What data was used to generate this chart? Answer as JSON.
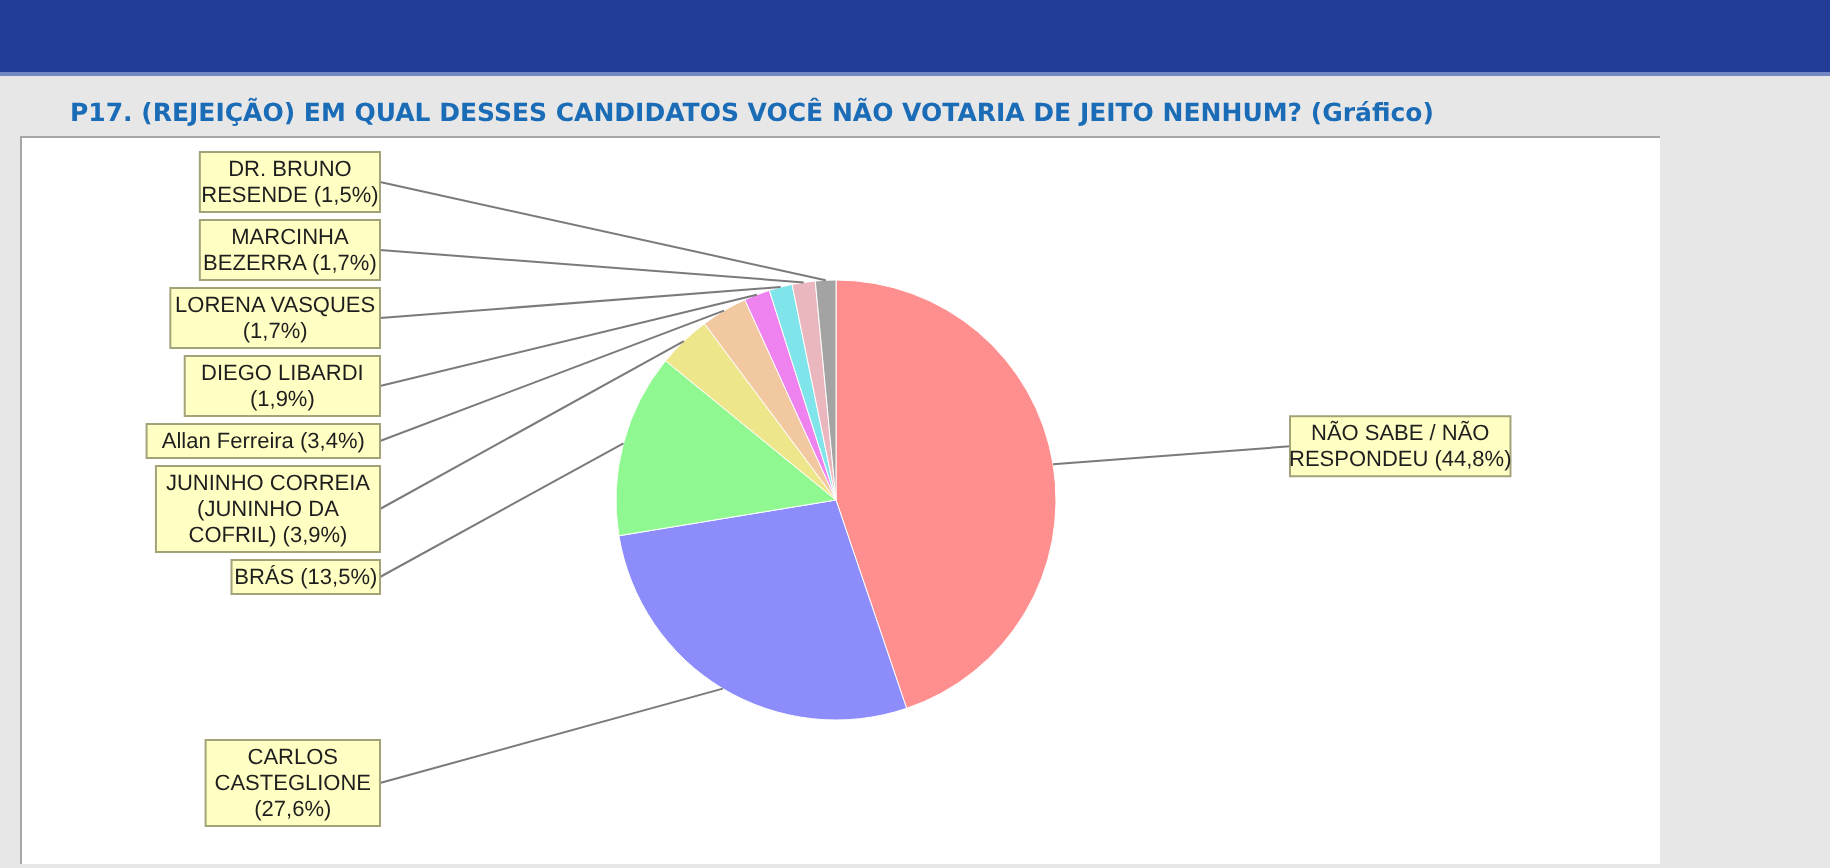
{
  "chart_data": {
    "type": "pie",
    "title": "P17. (REJEIÇÃO) EM QUAL DESSES CANDIDATOS VOCÊ NÃO VOTARIA DE JEITO NENHUM? (Gráfico)",
    "categories": [
      "NÃO SABE / NÃO RESPONDEU",
      "CARLOS CASTEGLIONE",
      "BRÁS",
      "JUNINHO CORREIA (JUNINHO DA COFRIL)",
      "Allan Ferreira",
      "DIEGO LIBARDI",
      "LORENA VASQUES",
      "MARCINHA BEZERRA",
      "DR. BRUNO RESENDE"
    ],
    "values": [
      44.8,
      27.6,
      13.5,
      3.9,
      3.4,
      1.9,
      1.7,
      1.7,
      1.5
    ],
    "colors": [
      "#ff8f8f",
      "#8c8cfa",
      "#90f890",
      "#eee68a",
      "#f2c8a0",
      "#ee82ee",
      "#7fe5ea",
      "#eab7be",
      "#a3a3a3"
    ],
    "value_labels": [
      "(44,8%)",
      "(27,6%)",
      "(13,5%)",
      "(3,9%)",
      "(3,4%)",
      "(1,9%)",
      "(1,7%)",
      "(1,7%)",
      "(1,5%)"
    ],
    "legend": false
  }
}
